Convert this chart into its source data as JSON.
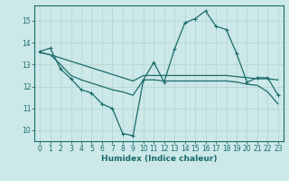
{
  "xlabel": "Humidex (Indice chaleur)",
  "background_color": "#cce8e8",
  "grid_color": "#b8d8d8",
  "line_color": "#1a6b6b",
  "xlim": [
    -0.5,
    23.5
  ],
  "ylim": [
    9.5,
    15.7
  ],
  "yticks": [
    10,
    11,
    12,
    13,
    14,
    15
  ],
  "xticks": [
    0,
    1,
    2,
    3,
    4,
    5,
    6,
    7,
    8,
    9,
    10,
    11,
    12,
    13,
    14,
    15,
    16,
    17,
    18,
    19,
    20,
    21,
    22,
    23
  ],
  "line1_x": [
    0,
    1,
    2,
    3,
    4,
    5,
    6,
    7,
    8,
    9,
    10,
    11,
    12,
    13,
    14,
    15,
    16,
    17,
    18,
    19,
    20,
    21,
    22,
    23
  ],
  "line1_y": [
    13.6,
    13.75,
    12.8,
    12.35,
    11.85,
    11.7,
    11.2,
    11.0,
    9.85,
    9.75,
    12.3,
    13.1,
    12.2,
    13.7,
    14.9,
    15.1,
    15.45,
    14.75,
    14.6,
    13.5,
    12.2,
    12.4,
    12.4,
    11.6
  ],
  "line2_x": [
    0,
    1,
    2,
    3,
    4,
    5,
    6,
    7,
    8,
    9,
    10,
    11,
    12,
    13,
    14,
    15,
    16,
    17,
    18,
    19,
    20,
    21,
    22,
    23
  ],
  "line2_y": [
    13.55,
    13.45,
    13.3,
    13.15,
    13.0,
    12.85,
    12.7,
    12.55,
    12.4,
    12.25,
    12.5,
    12.5,
    12.5,
    12.5,
    12.5,
    12.5,
    12.5,
    12.5,
    12.5,
    12.45,
    12.4,
    12.35,
    12.35,
    12.3
  ],
  "line3_x": [
    0,
    1,
    2,
    3,
    4,
    5,
    6,
    7,
    8,
    9,
    10,
    11,
    12,
    13,
    14,
    15,
    16,
    17,
    18,
    19,
    20,
    21,
    22,
    23
  ],
  "line3_y": [
    13.55,
    13.45,
    13.0,
    12.5,
    12.3,
    12.15,
    12.0,
    11.85,
    11.75,
    11.6,
    12.3,
    12.3,
    12.25,
    12.25,
    12.25,
    12.25,
    12.25,
    12.25,
    12.25,
    12.2,
    12.1,
    12.05,
    11.75,
    11.2
  ]
}
